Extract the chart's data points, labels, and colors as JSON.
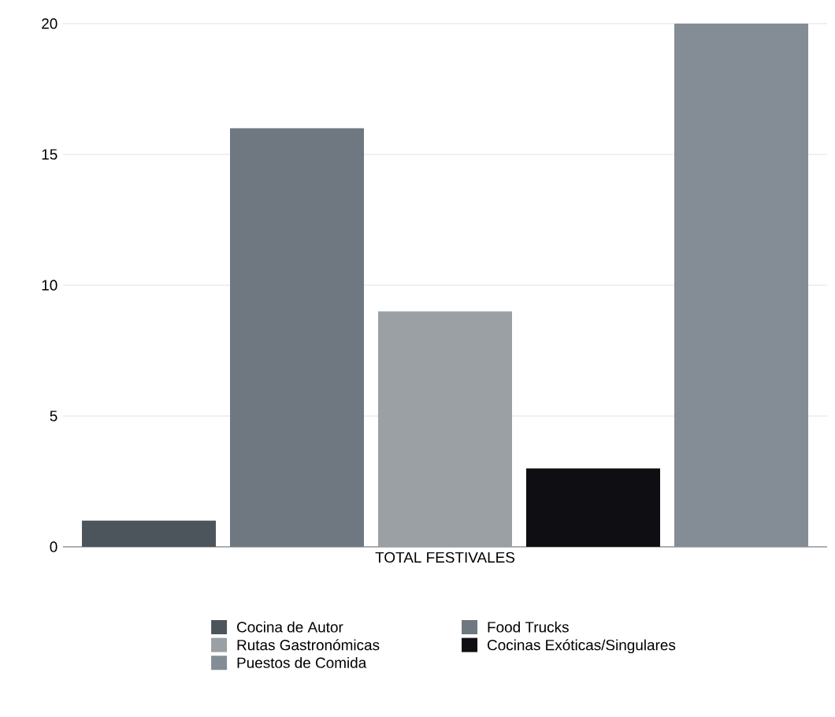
{
  "chart_data": {
    "type": "bar",
    "categories": [
      "TOTAL FESTIVALES"
    ],
    "series": [
      {
        "name": "Cocina de Autor",
        "color": "#4d555c",
        "values": [
          1
        ]
      },
      {
        "name": "Food Trucks",
        "color": "#6f7880",
        "values": [
          16
        ]
      },
      {
        "name": "Rutas Gastronómicas",
        "color": "#9aa0a3",
        "values": [
          9
        ]
      },
      {
        "name": "Cocinas Exóticas/Singulares",
        "color": "#0f0e12",
        "values": [
          3
        ]
      },
      {
        "name": "Puestos de Comida",
        "color": "#848c96",
        "values": [
          20
        ]
      }
    ],
    "ylim": [
      0,
      20
    ],
    "yticks": [
      0,
      5,
      10,
      15,
      20
    ],
    "grid": "y",
    "legend": "bottom"
  }
}
